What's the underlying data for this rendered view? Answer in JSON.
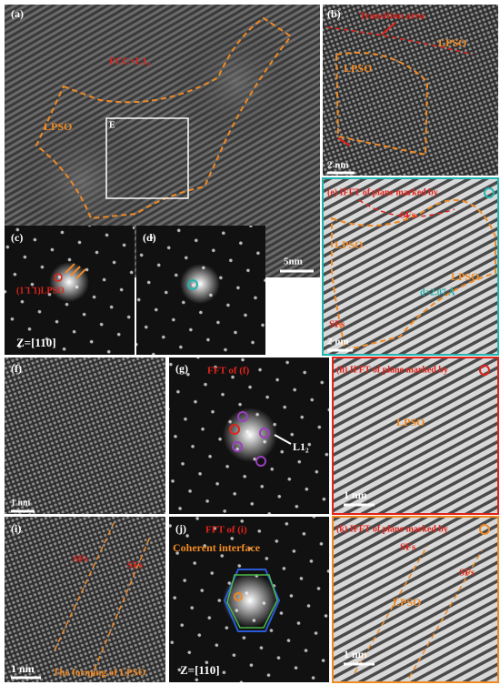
{
  "panels": {
    "a": {
      "label": "(a)",
      "phase": "FCC+L1₂",
      "region": "LPSO",
      "box": "E",
      "scale": "5nm"
    },
    "b": {
      "label": "(b)",
      "transition": "Transition area",
      "region_1": "LPSO",
      "region_2": "LPSO",
      "scale": "2 nm"
    },
    "c": {
      "label": "(c)",
      "plane": "(1 ̄1 ̄1)LPSO",
      "zone": "Z=[110]"
    },
    "d": {
      "label": "(d)"
    },
    "e": {
      "label": "(e) IFFT of plane marked by",
      "sfs_1": "SFs",
      "region_1": "LPSO",
      "region_2": "LPSO",
      "spacing": "d=2.07 Å",
      "sfs_2": "SFs",
      "scale": "2 nm"
    },
    "f": {
      "label": "(f)",
      "scale": "1 nm"
    },
    "g": {
      "label": "(g)",
      "title": "FFT of (f)",
      "phase": "L1₂"
    },
    "h": {
      "label": "(h) IFFT of plane marked by",
      "region": "LPSO",
      "scale": "1 nm"
    },
    "i": {
      "label": "(i)",
      "sfs_1": "SFs",
      "sfs_2": "SFs",
      "scale": "1 nm",
      "caption": "The forming of LPSO"
    },
    "j": {
      "label": "(j)",
      "title": "FFT of (i)",
      "interface": "Coherent interface",
      "zone": "Z=[110]"
    },
    "k": {
      "label": "(k) IFFT of plane marked by",
      "sfs_1": "SFs",
      "region": "LPSO",
      "sfs_2": "SFs",
      "scale": "1 nm"
    }
  }
}
